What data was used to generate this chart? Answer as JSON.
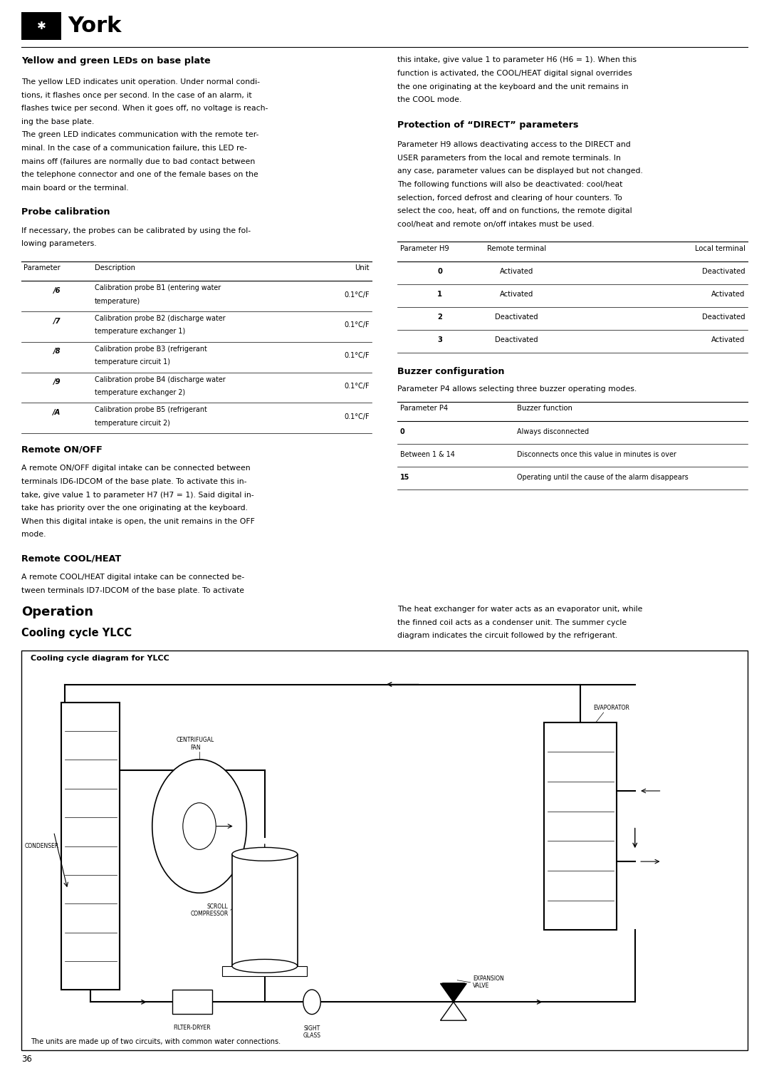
{
  "page_bg": "#ffffff",
  "page_number": "36",
  "title_fs": 9.2,
  "body_fs": 7.8,
  "table_fs": 7.2,
  "lh": 0.0122,
  "sections": {
    "yellow_green_leds": {
      "title": "Yellow and green LEDs on base plate",
      "body": [
        "The yellow LED indicates unit operation. Under normal condi-",
        "tions, it flashes once per second. In the case of an alarm, it",
        "flashes twice per second. When it goes off, no voltage is reach-",
        "ing the base plate.",
        "The green LED indicates communication with the remote ter-",
        "minal. In the case of a communication failure, this LED re-",
        "mains off (failures are normally due to bad contact between",
        "the telephone connector and one of the female bases on the",
        "main board or the terminal."
      ]
    },
    "probe_calibration": {
      "title": "Probe calibration",
      "body": [
        "If necessary, the probes can be calibrated by using the fol-",
        "lowing parameters."
      ],
      "table_rows": [
        [
          "/6",
          "Calibration probe B1 (entering water",
          "temperature)",
          "0.1°C/F"
        ],
        [
          "/7",
          "Calibration probe B2 (discharge water",
          "temperature exchanger 1)",
          "0.1°C/F"
        ],
        [
          "/8",
          "Calibration probe B3 (refrigerant",
          "temperature circuit 1)",
          "0.1°C/F"
        ],
        [
          "/9",
          "Calibration probe B4 (discharge water",
          "temperature exchanger 2)",
          "0.1°C/F"
        ],
        [
          "/A",
          "Calibration probe B5 (refrigerant",
          "temperature circuit 2)",
          "0.1°C/F"
        ]
      ]
    },
    "remote_onoff": {
      "title": "Remote ON/OFF",
      "body": [
        "A remote ON/OFF digital intake can be connected between",
        "terminals ID6-IDCOM of the base plate. To activate this in-",
        "take, give value 1 to parameter H7 (H7 = 1). Said digital in-",
        "take has priority over the one originating at the keyboard.",
        "When this digital intake is open, the unit remains in the OFF",
        "mode."
      ]
    },
    "remote_coolheat": {
      "title": "Remote COOL/HEAT",
      "body": [
        "A remote COOL/HEAT digital intake can be connected be-",
        "tween terminals ID7-IDCOM of the base plate. To activate"
      ]
    },
    "coolheat_cont": {
      "body": [
        "this intake, give value 1 to parameter H6 (H6 = 1). When this",
        "function is activated, the COOL/HEAT digital signal overrides",
        "the one originating at the keyboard and the unit remains in",
        "the COOL mode."
      ]
    },
    "protection_direct": {
      "title": "Protection of “DIRECT” parameters",
      "body": [
        "Parameter H9 allows deactivating access to the DIRECT and",
        "USER parameters from the local and remote terminals. In",
        "any case, parameter values can be displayed but not changed.",
        "The following functions will also be deactivated: cool/heat",
        "selection, forced defrost and clearing of hour counters. To",
        "select the coo, heat, off and on functions, the remote digital",
        "cool/heat and remote on/off intakes must be used."
      ],
      "table_rows": [
        [
          "0",
          "Activated",
          "Deactivated"
        ],
        [
          "1",
          "Activated",
          "Activated"
        ],
        [
          "2",
          "Deactivated",
          "Deactivated"
        ],
        [
          "3",
          "Deactivated",
          "Activated"
        ]
      ]
    },
    "buzzer_config": {
      "title": "Buzzer configuration",
      "body": [
        "Parameter P4 allows selecting three buzzer operating modes."
      ],
      "table_rows": [
        [
          "0",
          "Always disconnected"
        ],
        [
          "Between 1 & 14",
          "Disconnects once this value in minutes is over"
        ],
        [
          "15",
          "Operating until the cause of the alarm disappears"
        ]
      ]
    },
    "operation": {
      "title": "Operation",
      "subtitle": "Cooling cycle YLCC",
      "body": [
        "The heat exchanger for water acts as an evaporator unit, while",
        "the finned coil acts as a condenser unit. The summer cycle",
        "diagram indicates the circuit followed by the refrigerant."
      ]
    }
  }
}
